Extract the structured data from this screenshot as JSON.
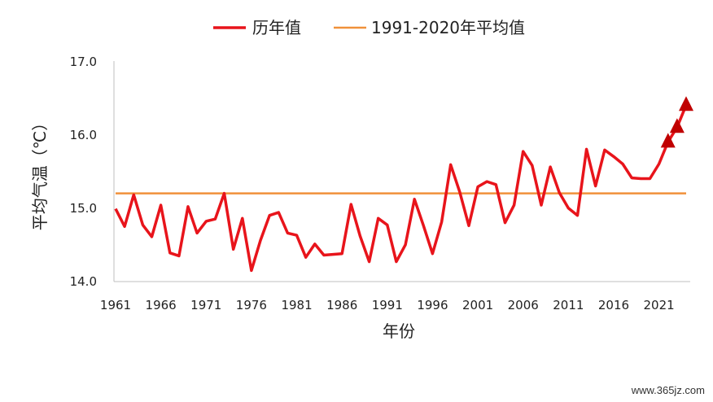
{
  "chart_data": {
    "type": "line",
    "xlabel": "年份",
    "ylabel": "平均气温（℃）",
    "ylim": [
      14.0,
      17.0
    ],
    "yticks": [
      "14.0",
      "15.0",
      "16.0",
      "17.0"
    ],
    "xtick_labels": [
      "1961",
      "1966",
      "1971",
      "1976",
      "1981",
      "1986",
      "1991",
      "1996",
      "2001",
      "2006",
      "2011",
      "2016",
      "2021"
    ],
    "grid": false,
    "legend_position": "top-center",
    "x": [
      1961,
      1962,
      1963,
      1964,
      1965,
      1966,
      1967,
      1968,
      1969,
      1970,
      1971,
      1972,
      1973,
      1974,
      1975,
      1976,
      1977,
      1978,
      1979,
      1980,
      1981,
      1982,
      1983,
      1984,
      1985,
      1986,
      1987,
      1988,
      1989,
      1990,
      1991,
      1992,
      1993,
      1994,
      1995,
      1996,
      1997,
      1998,
      1999,
      2000,
      2001,
      2002,
      2003,
      2004,
      2005,
      2006,
      2007,
      2008,
      2009,
      2010,
      2011,
      2012,
      2013,
      2014,
      2015,
      2016,
      2017,
      2018,
      2019,
      2020,
      2021,
      2022,
      2023,
      2024
    ],
    "series": [
      {
        "name": "历年值",
        "color": "#e8141b",
        "values": [
          14.99,
          14.75,
          15.18,
          14.77,
          14.61,
          15.04,
          14.39,
          14.35,
          15.02,
          14.66,
          14.82,
          14.85,
          15.2,
          14.44,
          14.86,
          14.15,
          14.56,
          14.9,
          14.94,
          14.66,
          14.63,
          14.33,
          14.51,
          14.36,
          14.37,
          14.38,
          15.05,
          14.62,
          14.27,
          14.86,
          14.77,
          14.27,
          14.5,
          15.12,
          14.76,
          14.38,
          14.81,
          15.59,
          15.22,
          14.76,
          15.29,
          15.36,
          15.32,
          14.8,
          15.04,
          15.77,
          15.58,
          15.04,
          15.56,
          15.21,
          15.0,
          14.9,
          15.8,
          15.3,
          15.79,
          15.7,
          15.6,
          15.41,
          15.4,
          15.4,
          15.6,
          15.9,
          16.1,
          16.4
        ]
      },
      {
        "name": "1991-2020年平均值",
        "color": "#f0913a",
        "values": [
          15.2,
          15.2,
          15.2,
          15.2,
          15.2,
          15.2,
          15.2,
          15.2,
          15.2,
          15.2,
          15.2,
          15.2,
          15.2,
          15.2,
          15.2,
          15.2,
          15.2,
          15.2,
          15.2,
          15.2,
          15.2,
          15.2,
          15.2,
          15.2,
          15.2,
          15.2,
          15.2,
          15.2,
          15.2,
          15.2,
          15.2,
          15.2,
          15.2,
          15.2,
          15.2,
          15.2,
          15.2,
          15.2,
          15.2,
          15.2,
          15.2,
          15.2,
          15.2,
          15.2,
          15.2,
          15.2,
          15.2,
          15.2,
          15.2,
          15.2,
          15.2,
          15.2,
          15.2,
          15.2,
          15.2,
          15.2,
          15.2,
          15.2,
          15.2,
          15.2,
          15.2,
          15.2,
          15.2,
          15.2
        ]
      }
    ],
    "markers": {
      "shape": "triangle",
      "color": "#c00000",
      "x": [
        2022,
        2023,
        2024
      ],
      "values": [
        15.9,
        16.1,
        16.4
      ]
    }
  },
  "watermark": "www.365jz.com"
}
